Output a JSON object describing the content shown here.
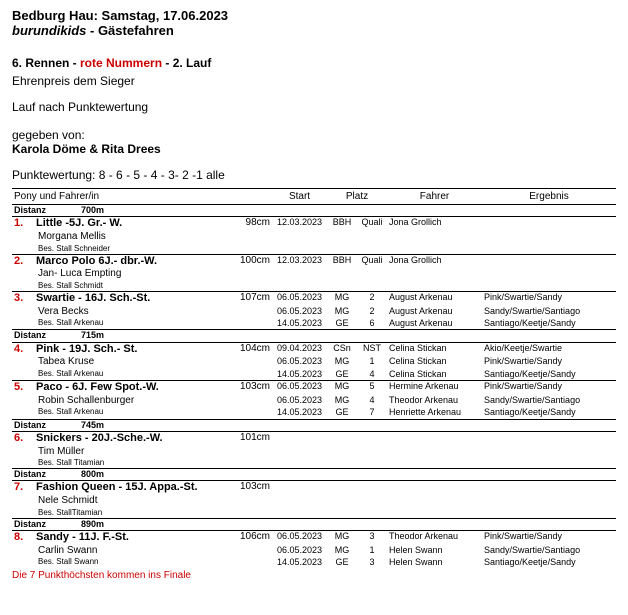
{
  "header": {
    "line1": "Bedburg Hau: Samstag, 17.06.2023",
    "line2a": "burundikids",
    "line2b": " - Gästefahren",
    "race_a": "6. Rennen - ",
    "race_b": "rote Nummern",
    "race_c": " - 2. Lauf",
    "honor": "Ehrenpreis dem Sieger",
    "mode": "Lauf nach Punktewertung",
    "given_by_label": "gegeben von:",
    "given_by": "Karola Döme & Rita Drees",
    "scoring": "Punktewertung: 8 - 6 - 5 - 4 - 3-  2 -1 alle"
  },
  "columns": {
    "pony": "Pony und Fahrer/in",
    "start": "Start",
    "platz": "Platz",
    "fahrer": "Fahrer",
    "ergebnis": "Ergebnis"
  },
  "dist_label": "Distanz",
  "entries": [
    {
      "distance": "700m",
      "items": [
        {
          "num": "1.",
          "pony": "Little -5J. Gr.- W.",
          "height": "98cm",
          "rider": "Morgana Mellis",
          "stable": "Bes. Stall Schneider",
          "starts": [
            {
              "date": "12.03.2023",
              "cls": "BBH",
              "pl": "Quali",
              "drv": "Jona Grollich",
              "res": ""
            }
          ]
        },
        {
          "num": "2.",
          "pony": "Marco Polo 6J.- dbr.-W.",
          "height": "100cm",
          "rider": "Jan- Luca Empting",
          "stable": "Bes. Stall Schmidt",
          "starts": [
            {
              "date": "12.03.2023",
              "cls": "BBH",
              "pl": "Quali",
              "drv": "Jona Grollich",
              "res": ""
            }
          ]
        },
        {
          "num": "3.",
          "pony": "Swartie - 16J. Sch.-St.",
          "height": "107cm",
          "rider": "Vera Becks",
          "stable": "Bes. Stall Arkenau",
          "starts": [
            {
              "date": "06.05.2023",
              "cls": "MG",
              "pl": "2",
              "drv": "August Arkenau",
              "res": "Pink/Swartie/Sandy"
            },
            {
              "date": "06.05.2023",
              "cls": "MG",
              "pl": "2",
              "drv": "August Arkenau",
              "res": "Sandy/Swartie/Santiago"
            },
            {
              "date": "14.05.2023",
              "cls": "GE",
              "pl": "6",
              "drv": "August Arkenau",
              "res": "Santiago/Keetje/Sandy"
            }
          ]
        }
      ]
    },
    {
      "distance": "715m",
      "items": [
        {
          "num": "4.",
          "pony": "Pink - 19J. Sch.- St.",
          "height": "104cm",
          "rider": "Tabea Kruse",
          "stable": "Bes. Stall Arkenau",
          "starts": [
            {
              "date": "09.04.2023",
              "cls": "CSn",
              "pl": "NST",
              "drv": "Celina Stickan",
              "res": "Akio/Keetje/Swartie"
            },
            {
              "date": "06.05.2023",
              "cls": "MG",
              "pl": "1",
              "drv": "Celina Stickan",
              "res": "Pink/Swartie/Sandy"
            },
            {
              "date": "14.05.2023",
              "cls": "GE",
              "pl": "4",
              "drv": "Celina Stickan",
              "res": "Santiago/Keetje/Sandy"
            }
          ]
        },
        {
          "num": "5.",
          "pony": "Paco - 6J. Few Spot.-W.",
          "height": "103cm",
          "rider": "Robin Schallenburger",
          "stable": "Bes. Stall Arkenau",
          "starts": [
            {
              "date": "06.05.2023",
              "cls": "MG",
              "pl": "5",
              "drv": "Hermine Arkenau",
              "res": "Pink/Swartie/Sandy"
            },
            {
              "date": "06.05.2023",
              "cls": "MG",
              "pl": "4",
              "drv": "Theodor Arkenau",
              "res": "Sandy/Swartie/Santiago"
            },
            {
              "date": "14.05.2023",
              "cls": "GE",
              "pl": "7",
              "drv": "Henriette Arkenau",
              "res": "Santiago/Keetje/Sandy"
            }
          ]
        }
      ]
    },
    {
      "distance": "745m",
      "items": [
        {
          "num": "6.",
          "numColor": "red",
          "pony": "Snickers - 20J.-Sche.-W.",
          "height": "101cm",
          "rider": "Tim Müller",
          "stable": "Bes. Stall Titamian",
          "starts": []
        }
      ]
    },
    {
      "distance": "800m",
      "items": [
        {
          "num": "7.",
          "pony": "Fashion Queen - 15J. Appa.-St.",
          "height": "103cm",
          "rider": "Nele Schmidt",
          "stable": "Bes. StallTitamian",
          "starts": []
        }
      ]
    },
    {
      "distance": "890m",
      "items": [
        {
          "num": "8.",
          "pony": "Sandy - 11J. F.-St.",
          "height": "106cm",
          "rider": "Carlin Swann",
          "stable": "Bes. Stall Swann",
          "starts": [
            {
              "date": "06.05.2023",
              "cls": "MG",
              "pl": "3",
              "drv": "Theodor Arkenau",
              "res": "Pink/Swartie/Sandy"
            },
            {
              "date": "06.05.2023",
              "cls": "MG",
              "pl": "1",
              "drv": "Helen Swann",
              "res": "Sandy/Swartie/Santiago"
            },
            {
              "date": "14.05.2023",
              "cls": "GE",
              "pl": "3",
              "drv": "Helen Swann",
              "res": "Santiago/Keetje/Sandy"
            }
          ]
        }
      ]
    }
  ],
  "footer": "Die 7 Punkthöchsten kommen ins Finale"
}
